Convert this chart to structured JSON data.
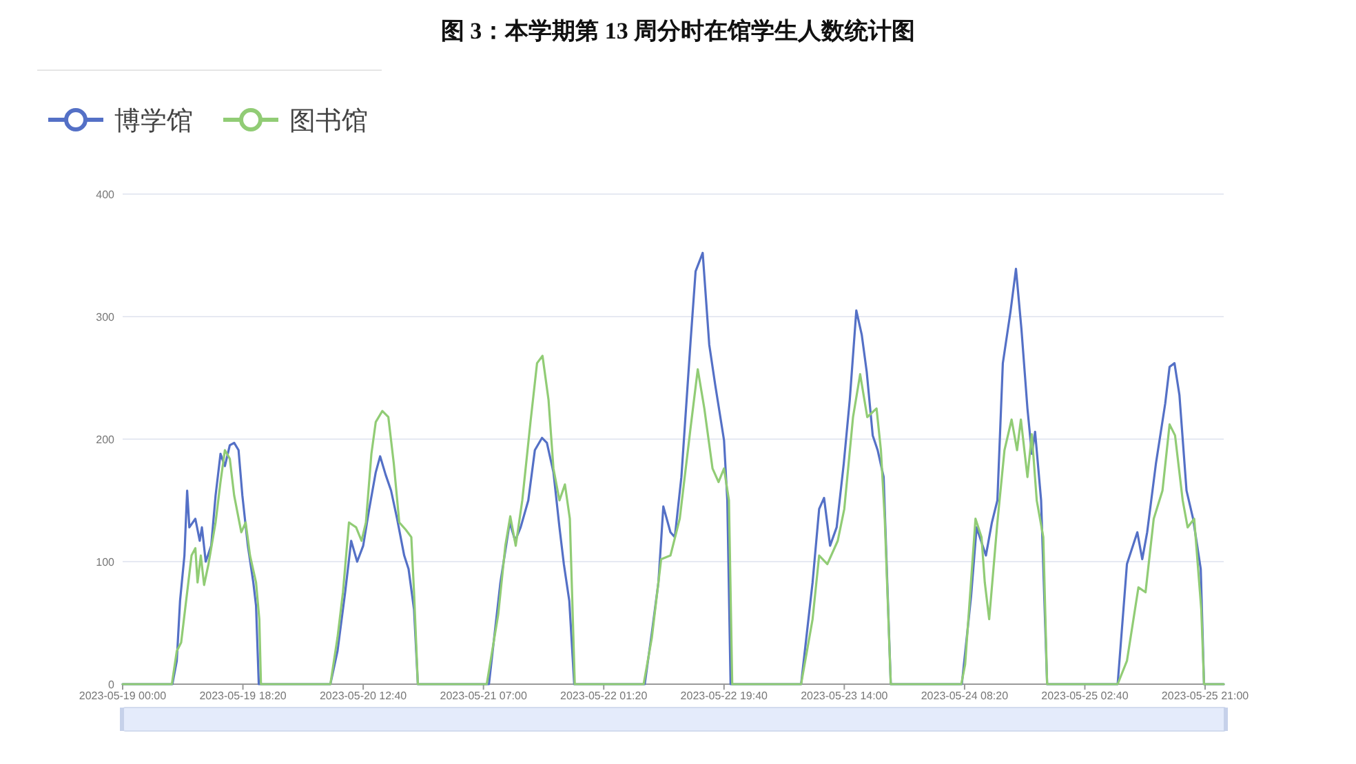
{
  "chart_data": {
    "type": "line",
    "title": "图 3：本学期第 13 周分时在馆学生人数统计图",
    "legend": "top left",
    "grid": "y",
    "marker": "none",
    "line_style": "solid",
    "xlim": [
      "2023-05-19T00:00",
      "2023-05-25T23:50"
    ],
    "xticks": [
      {
        "value": "2023-05-19T00:00",
        "label": "2023-05-19 00:00"
      },
      {
        "value": "2023-05-19T18:20",
        "label": "2023-05-19 18:20"
      },
      {
        "value": "2023-05-20T12:40",
        "label": "2023-05-20 12:40"
      },
      {
        "value": "2023-05-21T07:00",
        "label": "2023-05-21 07:00"
      },
      {
        "value": "2023-05-22T01:20",
        "label": "2023-05-22 01:20"
      },
      {
        "value": "2023-05-22T19:40",
        "label": "2023-05-22 19:40"
      },
      {
        "value": "2023-05-23T14:00",
        "label": "2023-05-23 14:00"
      },
      {
        "value": "2023-05-24T08:20",
        "label": "2023-05-24 08:20"
      },
      {
        "value": "2023-05-25T02:40",
        "label": "2023-05-25 02:40"
      },
      {
        "value": "2023-05-25T21:00",
        "label": "2023-05-25 21:00"
      }
    ],
    "ylim": [
      0,
      400
    ],
    "yticks": [
      0,
      100,
      200,
      300,
      400
    ],
    "series": [
      {
        "name": "博学馆",
        "color": "#5470c6",
        "x": [
          "2023-05-19T00:00",
          "2023-05-19T07:35",
          "2023-05-19T08:15",
          "2023-05-19T08:45",
          "2023-05-19T09:25",
          "2023-05-19T09:50",
          "2023-05-19T10:10",
          "2023-05-19T11:05",
          "2023-05-19T11:45",
          "2023-05-19T12:05",
          "2023-05-19T12:40",
          "2023-05-19T13:30",
          "2023-05-19T14:10",
          "2023-05-19T14:55",
          "2023-05-19T15:35",
          "2023-05-19T16:20",
          "2023-05-19T17:00",
          "2023-05-19T17:40",
          "2023-05-19T18:15",
          "2023-05-19T19:05",
          "2023-05-19T19:55",
          "2023-05-19T20:20",
          "2023-05-19T20:45",
          "2023-05-20T07:40",
          "2023-05-20T08:45",
          "2023-05-20T09:55",
          "2023-05-20T10:50",
          "2023-05-20T11:45",
          "2023-05-20T12:40",
          "2023-05-20T13:35",
          "2023-05-20T14:35",
          "2023-05-20T15:15",
          "2023-05-20T16:05",
          "2023-05-20T16:55",
          "2023-05-20T17:50",
          "2023-05-20T18:55",
          "2023-05-20T19:35",
          "2023-05-20T20:25",
          "2023-05-20T21:00",
          "2023-05-21T07:50",
          "2023-05-21T09:35",
          "2023-05-21T11:00",
          "2023-05-21T11:50",
          "2023-05-21T12:40",
          "2023-05-21T13:50",
          "2023-05-21T14:50",
          "2023-05-21T15:55",
          "2023-05-21T16:40",
          "2023-05-21T17:40",
          "2023-05-21T18:35",
          "2023-05-21T19:15",
          "2023-05-21T20:05",
          "2023-05-21T20:50",
          "2023-05-22T07:35",
          "2023-05-22T08:40",
          "2023-05-22T09:40",
          "2023-05-22T10:25",
          "2023-05-22T11:30",
          "2023-05-22T12:10",
          "2023-05-22T13:10",
          "2023-05-22T14:35",
          "2023-05-22T15:20",
          "2023-05-22T16:25",
          "2023-05-22T17:25",
          "2023-05-22T18:20",
          "2023-05-22T19:10",
          "2023-05-22T19:40",
          "2023-05-22T20:10",
          "2023-05-22T20:40",
          "2023-05-23T07:25",
          "2023-05-23T09:10",
          "2023-05-23T10:10",
          "2023-05-23T10:55",
          "2023-05-23T11:50",
          "2023-05-23T12:50",
          "2023-05-23T13:55",
          "2023-05-23T14:50",
          "2023-05-23T15:50",
          "2023-05-23T16:40",
          "2023-05-23T17:25",
          "2023-05-23T18:20",
          "2023-05-23T19:05",
          "2023-05-23T20:00",
          "2023-05-23T21:05",
          "2023-05-24T07:55",
          "2023-05-24T09:20",
          "2023-05-24T10:10",
          "2023-05-24T11:35",
          "2023-05-24T12:30",
          "2023-05-24T13:20",
          "2023-05-24T14:10",
          "2023-05-24T15:20",
          "2023-05-24T16:10",
          "2023-05-24T17:00",
          "2023-05-24T17:55",
          "2023-05-24T18:35",
          "2023-05-24T19:05",
          "2023-05-24T20:00",
          "2023-05-24T20:55",
          "2023-05-25T07:40",
          "2023-05-25T09:05",
          "2023-05-25T10:40",
          "2023-05-25T11:25",
          "2023-05-25T12:10",
          "2023-05-25T13:30",
          "2023-05-25T14:55",
          "2023-05-25T15:35",
          "2023-05-25T16:20",
          "2023-05-25T17:05",
          "2023-05-25T18:10",
          "2023-05-25T19:10",
          "2023-05-25T20:20",
          "2023-05-25T20:50",
          "2023-05-25T23:50"
        ],
        "values": [
          0,
          0,
          19,
          68,
          105,
          158,
          128,
          135,
          117,
          128,
          100,
          113,
          154,
          188,
          178,
          195,
          197,
          191,
          154,
          113,
          83,
          64,
          0,
          0,
          27,
          75,
          117,
          100,
          113,
          143,
          173,
          186,
          171,
          158,
          135,
          105,
          94,
          61,
          0,
          0,
          83,
          132,
          117,
          128,
          150,
          191,
          201,
          197,
          173,
          128,
          98,
          68,
          0,
          0,
          42,
          83,
          145,
          124,
          120,
          169,
          281,
          337,
          352,
          277,
          244,
          216,
          199,
          150,
          0,
          0,
          83,
          143,
          152,
          113,
          128,
          180,
          232,
          305,
          285,
          255,
          203,
          191,
          169,
          0,
          0,
          72,
          128,
          105,
          132,
          150,
          262,
          304,
          339,
          290,
          225,
          188,
          206,
          150,
          0,
          0,
          98,
          124,
          102,
          124,
          180,
          229,
          259,
          262,
          236,
          158,
          135,
          94,
          0,
          0
        ]
      },
      {
        "name": "图书馆",
        "color": "#91cc75",
        "x": [
          "2023-05-19T00:00",
          "2023-05-19T07:30",
          "2023-05-19T08:15",
          "2023-05-19T08:55",
          "2023-05-19T09:50",
          "2023-05-19T10:30",
          "2023-05-19T11:05",
          "2023-05-19T11:25",
          "2023-05-19T11:55",
          "2023-05-19T12:25",
          "2023-05-19T13:05",
          "2023-05-19T14:10",
          "2023-05-19T14:55",
          "2023-05-19T15:35",
          "2023-05-19T16:20",
          "2023-05-19T17:00",
          "2023-05-19T18:05",
          "2023-05-19T18:45",
          "2023-05-19T19:25",
          "2023-05-19T20:20",
          "2023-05-19T20:50",
          "2023-05-19T21:05",
          "2023-05-20T07:40",
          "2023-05-20T08:45",
          "2023-05-20T09:35",
          "2023-05-20T10:30",
          "2023-05-20T11:35",
          "2023-05-20T12:25",
          "2023-05-20T13:05",
          "2023-05-20T13:55",
          "2023-05-20T14:35",
          "2023-05-20T15:35",
          "2023-05-20T16:30",
          "2023-05-20T17:20",
          "2023-05-20T18:10",
          "2023-05-20T19:10",
          "2023-05-20T20:00",
          "2023-05-20T20:25",
          "2023-05-20T21:00",
          "2023-05-21T07:30",
          "2023-05-21T09:15",
          "2023-05-21T10:20",
          "2023-05-21T11:05",
          "2023-05-21T11:55",
          "2023-05-21T12:55",
          "2023-05-21T14:10",
          "2023-05-21T15:10",
          "2023-05-21T16:00",
          "2023-05-21T16:55",
          "2023-05-21T17:40",
          "2023-05-21T18:35",
          "2023-05-21T19:25",
          "2023-05-21T20:10",
          "2023-05-21T20:55",
          "2023-05-22T07:25",
          "2023-05-22T08:40",
          "2023-05-22T10:05",
          "2023-05-22T11:30",
          "2023-05-22T12:55",
          "2023-05-22T14:35",
          "2023-05-22T15:40",
          "2023-05-22T16:40",
          "2023-05-22T17:55",
          "2023-05-22T18:50",
          "2023-05-22T19:40",
          "2023-05-22T20:25",
          "2023-05-22T20:55",
          "2023-05-23T07:25",
          "2023-05-23T09:10",
          "2023-05-23T10:10",
          "2023-05-23T11:25",
          "2023-05-23T13:00",
          "2023-05-23T14:00",
          "2023-05-23T15:20",
          "2023-05-23T16:25",
          "2023-05-23T17:30",
          "2023-05-23T18:55",
          "2023-05-23T19:35",
          "2023-05-23T20:10",
          "2023-05-23T21:05",
          "2023-05-24T07:50",
          "2023-05-24T08:25",
          "2023-05-24T10:00",
          "2023-05-24T10:55",
          "2023-05-24T11:25",
          "2023-05-24T12:05",
          "2023-05-24T13:20",
          "2023-05-24T14:25",
          "2023-05-24T15:30",
          "2023-05-24T16:20",
          "2023-05-24T16:55",
          "2023-05-24T17:55",
          "2023-05-24T18:35",
          "2023-05-24T19:20",
          "2023-05-24T20:20",
          "2023-05-24T20:55",
          "2023-05-25T07:40",
          "2023-05-25T09:05",
          "2023-05-25T10:50",
          "2023-05-25T11:55",
          "2023-05-25T13:10",
          "2023-05-25T14:30",
          "2023-05-25T15:35",
          "2023-05-25T16:25",
          "2023-05-25T17:35",
          "2023-05-25T18:20",
          "2023-05-25T19:20",
          "2023-05-25T20:25",
          "2023-05-25T20:50",
          "2023-05-25T23:50"
        ],
        "values": [
          0,
          0,
          27,
          34,
          75,
          105,
          111,
          83,
          105,
          81,
          98,
          132,
          165,
          191,
          184,
          154,
          124,
          132,
          105,
          83,
          53,
          0,
          0,
          38,
          75,
          132,
          128,
          117,
          132,
          188,
          214,
          223,
          218,
          180,
          132,
          126,
          120,
          75,
          0,
          0,
          57,
          113,
          137,
          113,
          150,
          214,
          262,
          268,
          232,
          176,
          150,
          163,
          135,
          0,
          0,
          38,
          102,
          105,
          135,
          210,
          257,
          225,
          176,
          165,
          176,
          150,
          0,
          0,
          53,
          105,
          98,
          117,
          143,
          218,
          253,
          218,
          225,
          191,
          135,
          0,
          0,
          16,
          135,
          120,
          83,
          53,
          132,
          191,
          216,
          191,
          216,
          169,
          204,
          150,
          120,
          0,
          0,
          19,
          79,
          75,
          135,
          158,
          212,
          203,
          150,
          128,
          135,
          61,
          0,
          0
        ]
      }
    ]
  }
}
